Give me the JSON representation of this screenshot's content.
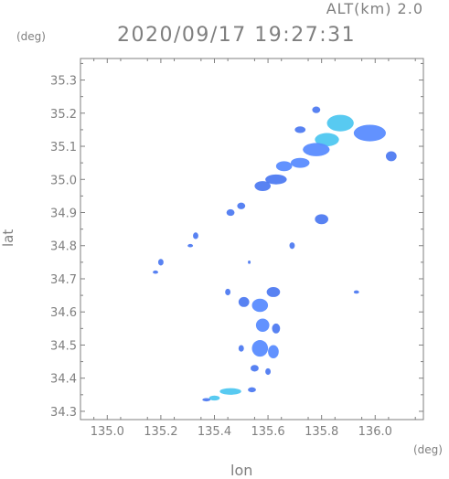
{
  "header": {
    "altitude_label": "ALT(km) 2.0",
    "timestamp": "2020/09/17 19:27:31"
  },
  "chart_data": {
    "type": "heatmap",
    "xlabel": "lon",
    "ylabel": "lat",
    "x_unit": "(deg)",
    "y_unit": "(deg)",
    "xlim": [
      134.9,
      136.18
    ],
    "ylim": [
      34.275,
      35.365
    ],
    "x_ticks": [
      135.0,
      135.2,
      135.4,
      135.6,
      135.8,
      136.0
    ],
    "x_tick_labels": [
      "135.0",
      "135.2",
      "135.4",
      "135.6",
      "135.8",
      "136.0"
    ],
    "y_ticks": [
      34.3,
      34.4,
      34.5,
      34.6,
      34.7,
      34.8,
      34.9,
      35.0,
      35.1,
      35.2,
      35.3
    ],
    "y_tick_labels": [
      "34.3",
      "34.4",
      "34.5",
      "34.6",
      "34.7",
      "34.8",
      "34.9",
      "35.0",
      "35.1",
      "35.2",
      "35.3"
    ],
    "grid": false,
    "colors": {
      "frame": "#7f7f7f",
      "weak": "#3b6cf0",
      "medium": "#5a8cff",
      "strong": "#4fc7f0"
    },
    "echo_cells": [
      {
        "lon": 135.87,
        "lat": 35.17,
        "lon_extent": 0.1,
        "lat_extent": 0.05,
        "level": "strong"
      },
      {
        "lon": 135.98,
        "lat": 35.14,
        "lon_extent": 0.12,
        "lat_extent": 0.05,
        "level": "medium"
      },
      {
        "lon": 135.82,
        "lat": 35.12,
        "lon_extent": 0.09,
        "lat_extent": 0.04,
        "level": "strong"
      },
      {
        "lon": 135.78,
        "lat": 35.09,
        "lon_extent": 0.1,
        "lat_extent": 0.04,
        "level": "medium"
      },
      {
        "lon": 135.72,
        "lat": 35.05,
        "lon_extent": 0.07,
        "lat_extent": 0.03,
        "level": "medium"
      },
      {
        "lon": 135.66,
        "lat": 35.04,
        "lon_extent": 0.06,
        "lat_extent": 0.03,
        "level": "medium"
      },
      {
        "lon": 135.63,
        "lat": 35.0,
        "lon_extent": 0.08,
        "lat_extent": 0.03,
        "level": "weak"
      },
      {
        "lon": 135.58,
        "lat": 34.98,
        "lon_extent": 0.06,
        "lat_extent": 0.03,
        "level": "weak"
      },
      {
        "lon": 135.72,
        "lat": 35.15,
        "lon_extent": 0.04,
        "lat_extent": 0.02,
        "level": "weak"
      },
      {
        "lon": 136.06,
        "lat": 35.07,
        "lon_extent": 0.04,
        "lat_extent": 0.03,
        "level": "weak"
      },
      {
        "lon": 135.78,
        "lat": 35.21,
        "lon_extent": 0.03,
        "lat_extent": 0.02,
        "level": "weak"
      },
      {
        "lon": 135.8,
        "lat": 34.88,
        "lon_extent": 0.05,
        "lat_extent": 0.03,
        "level": "weak"
      },
      {
        "lon": 135.46,
        "lat": 34.9,
        "lon_extent": 0.03,
        "lat_extent": 0.02,
        "level": "weak"
      },
      {
        "lon": 135.5,
        "lat": 34.92,
        "lon_extent": 0.03,
        "lat_extent": 0.02,
        "level": "weak"
      },
      {
        "lon": 135.33,
        "lat": 34.83,
        "lon_extent": 0.02,
        "lat_extent": 0.02,
        "level": "weak"
      },
      {
        "lon": 135.31,
        "lat": 34.8,
        "lon_extent": 0.02,
        "lat_extent": 0.01,
        "level": "weak"
      },
      {
        "lon": 135.2,
        "lat": 34.75,
        "lon_extent": 0.02,
        "lat_extent": 0.02,
        "level": "weak"
      },
      {
        "lon": 135.18,
        "lat": 34.72,
        "lon_extent": 0.02,
        "lat_extent": 0.01,
        "level": "weak"
      },
      {
        "lon": 135.69,
        "lat": 34.8,
        "lon_extent": 0.02,
        "lat_extent": 0.02,
        "level": "weak"
      },
      {
        "lon": 135.53,
        "lat": 34.75,
        "lon_extent": 0.01,
        "lat_extent": 0.01,
        "level": "weak"
      },
      {
        "lon": 135.62,
        "lat": 34.66,
        "lon_extent": 0.05,
        "lat_extent": 0.03,
        "level": "weak"
      },
      {
        "lon": 135.57,
        "lat": 34.62,
        "lon_extent": 0.06,
        "lat_extent": 0.04,
        "level": "medium"
      },
      {
        "lon": 135.51,
        "lat": 34.63,
        "lon_extent": 0.04,
        "lat_extent": 0.03,
        "level": "weak"
      },
      {
        "lon": 135.45,
        "lat": 34.66,
        "lon_extent": 0.02,
        "lat_extent": 0.02,
        "level": "weak"
      },
      {
        "lon": 135.58,
        "lat": 34.56,
        "lon_extent": 0.05,
        "lat_extent": 0.04,
        "level": "medium"
      },
      {
        "lon": 135.63,
        "lat": 34.55,
        "lon_extent": 0.03,
        "lat_extent": 0.03,
        "level": "weak"
      },
      {
        "lon": 135.57,
        "lat": 34.49,
        "lon_extent": 0.06,
        "lat_extent": 0.05,
        "level": "medium"
      },
      {
        "lon": 135.62,
        "lat": 34.48,
        "lon_extent": 0.04,
        "lat_extent": 0.04,
        "level": "medium"
      },
      {
        "lon": 135.55,
        "lat": 34.43,
        "lon_extent": 0.03,
        "lat_extent": 0.02,
        "level": "weak"
      },
      {
        "lon": 135.6,
        "lat": 34.42,
        "lon_extent": 0.02,
        "lat_extent": 0.02,
        "level": "weak"
      },
      {
        "lon": 135.5,
        "lat": 34.49,
        "lon_extent": 0.02,
        "lat_extent": 0.02,
        "level": "weak"
      },
      {
        "lon": 135.93,
        "lat": 34.66,
        "lon_extent": 0.02,
        "lat_extent": 0.01,
        "level": "weak"
      },
      {
        "lon": 135.46,
        "lat": 34.36,
        "lon_extent": 0.08,
        "lat_extent": 0.02,
        "level": "strong"
      },
      {
        "lon": 135.4,
        "lat": 34.34,
        "lon_extent": 0.04,
        "lat_extent": 0.015,
        "level": "strong"
      },
      {
        "lon": 135.37,
        "lat": 34.335,
        "lon_extent": 0.03,
        "lat_extent": 0.01,
        "level": "weak"
      },
      {
        "lon": 135.54,
        "lat": 34.365,
        "lon_extent": 0.03,
        "lat_extent": 0.015,
        "level": "weak"
      }
    ]
  }
}
